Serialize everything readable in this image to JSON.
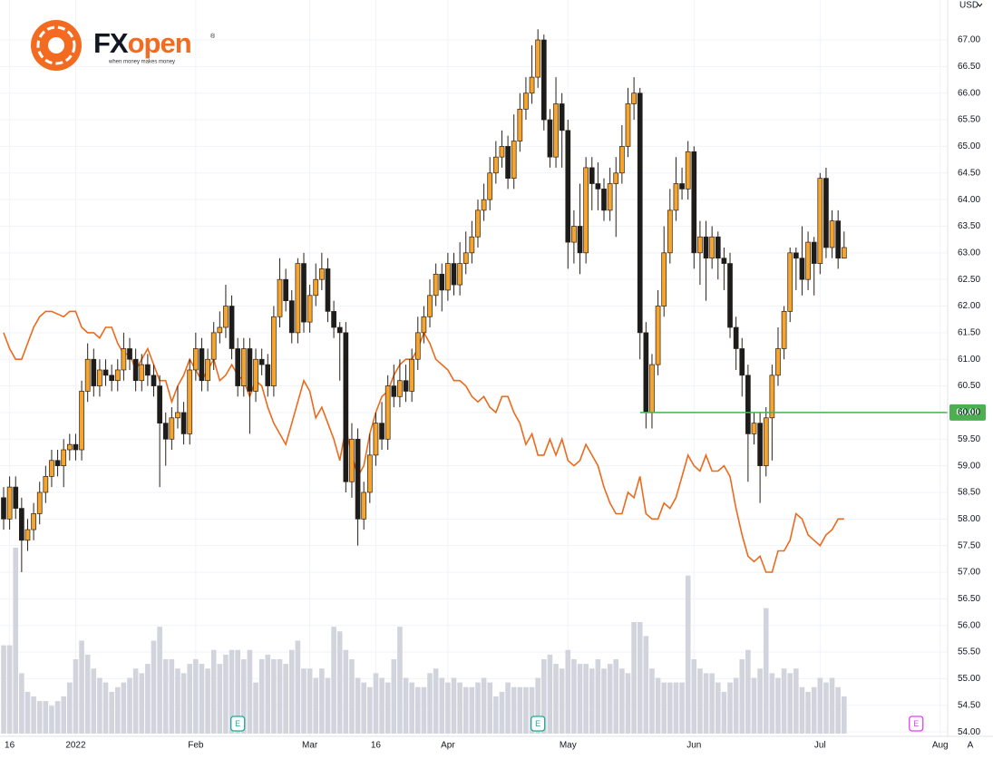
{
  "brand": {
    "name_a": "FX",
    "name_b": "open",
    "mark": "®",
    "tagline": "when money makes money"
  },
  "chart_data": {
    "type": "candlestick",
    "currency": "USD",
    "auto_button": "A",
    "categories": [
      null,
      "16",
      null,
      null,
      null,
      null,
      null,
      null,
      null,
      null,
      null,
      null,
      "2022",
      null,
      null,
      null,
      null,
      null,
      null,
      null,
      null,
      null,
      null,
      null,
      null,
      null,
      null,
      null,
      null,
      null,
      null,
      null,
      "Feb",
      null,
      null,
      null,
      null,
      null,
      null,
      null,
      null,
      null,
      null,
      null,
      null,
      null,
      null,
      null,
      null,
      null,
      null,
      "Mar",
      null,
      null,
      null,
      null,
      null,
      null,
      null,
      null,
      null,
      null,
      "16",
      null,
      null,
      null,
      null,
      null,
      null,
      null,
      null,
      null,
      null,
      null,
      "Apr",
      null,
      null,
      null,
      null,
      null,
      null,
      null,
      null,
      null,
      null,
      null,
      null,
      null,
      null,
      null,
      null,
      null,
      null,
      null,
      "May",
      null,
      null,
      null,
      null,
      null,
      null,
      null,
      null,
      null,
      null,
      null,
      null,
      null,
      null,
      null,
      null,
      null,
      null,
      null,
      null,
      "Jun",
      null,
      null,
      null,
      null,
      null,
      null,
      null,
      null,
      null,
      null,
      null,
      null,
      null,
      null,
      null,
      null,
      null,
      null,
      null,
      null,
      "Jul",
      null,
      null,
      null,
      null,
      null,
      null,
      null,
      null,
      null,
      null,
      null,
      null,
      null,
      null,
      null,
      null,
      null,
      null,
      null,
      "Aug",
      null
    ],
    "open": [
      58.4,
      58.0,
      58.6,
      58.2,
      57.6,
      57.8,
      58.1,
      58.5,
      58.8,
      59.1,
      59.0,
      59.3,
      59.4,
      59.3,
      60.4,
      61.0,
      60.5,
      60.8,
      60.7,
      60.6,
      60.8,
      61.2,
      61.0,
      60.6,
      60.9,
      60.7,
      60.5,
      59.8,
      59.5,
      59.9,
      60.0,
      59.6,
      60.8,
      61.2,
      60.6,
      61.0,
      61.5,
      61.6,
      62.0,
      61.2,
      60.5,
      61.2,
      60.4,
      61.0,
      60.9,
      60.5,
      61.8,
      62.5,
      62.1,
      61.5,
      62.8,
      61.7,
      62.2,
      62.5,
      62.7,
      61.9,
      61.6,
      61.5,
      58.7,
      59.5,
      58.0,
      58.5,
      59.2,
      59.8,
      59.5,
      60.5,
      60.3,
      60.6,
      60.4,
      61.0,
      61.5,
      61.8,
      62.2,
      62.6,
      62.3,
      62.8,
      62.4,
      62.8,
      63.0,
      63.3,
      63.8,
      64.0,
      64.5,
      64.8,
      65.0,
      64.4,
      65.1,
      65.7,
      66.0,
      66.3,
      67.0,
      65.5,
      64.8,
      65.8,
      65.3,
      63.2,
      63.5,
      63.0,
      64.6,
      64.3,
      64.2,
      63.8,
      64.3,
      64.5,
      65.0,
      65.8,
      66.0,
      61.5,
      60.0,
      60.9,
      62.0,
      63.0,
      63.8,
      64.3,
      64.2,
      64.9,
      63.0,
      63.3,
      62.9,
      63.3,
      62.9,
      62.8,
      61.6,
      61.2,
      60.7,
      59.6,
      59.8,
      59.0,
      59.9,
      60.7,
      61.2,
      61.9,
      63.0,
      62.9,
      62.5,
      63.2,
      62.8,
      64.4,
      63.1,
      63.6,
      62.9,
      null,
      null,
      null,
      null,
      null,
      null,
      null,
      null,
      null,
      null,
      null,
      null,
      null,
      null,
      null,
      null,
      null
    ],
    "high": [
      58.6,
      58.8,
      58.8,
      58.4,
      58.0,
      58.3,
      58.7,
      59.0,
      59.3,
      59.3,
      59.5,
      59.6,
      59.6,
      60.6,
      61.3,
      61.2,
      61.0,
      61.0,
      60.9,
      61.0,
      61.5,
      61.4,
      61.2,
      61.1,
      61.1,
      60.9,
      60.7,
      60.0,
      60.1,
      60.5,
      60.2,
      61.0,
      61.5,
      61.4,
      61.2,
      61.7,
      61.9,
      62.4,
      62.2,
      61.4,
      61.4,
      61.4,
      61.2,
      61.2,
      61.1,
      62.0,
      62.9,
      62.7,
      62.3,
      62.9,
      63.0,
      62.4,
      62.8,
      63.0,
      62.9,
      62.1,
      61.7,
      61.7,
      59.8,
      59.7,
      58.7,
      59.6,
      60.0,
      60.2,
      60.7,
      60.9,
      61.0,
      60.9,
      61.2,
      61.8,
      62.0,
      62.5,
      62.8,
      62.8,
      63.0,
      63.0,
      63.2,
      63.4,
      63.6,
      64.0,
      64.3,
      64.8,
      65.1,
      65.3,
      65.2,
      65.6,
      66.0,
      66.3,
      66.9,
      67.2,
      67.1,
      65.7,
      66.3,
      66.0,
      65.5,
      63.8,
      64.3,
      64.8,
      64.8,
      64.7,
      64.4,
      64.6,
      64.8,
      65.4,
      66.1,
      66.3,
      66.1,
      61.7,
      61.1,
      62.3,
      63.5,
      64.2,
      64.8,
      64.6,
      65.1,
      65.0,
      63.6,
      63.6,
      63.5,
      63.4,
      63.1,
      63.0,
      61.8,
      61.4,
      60.9,
      60.0,
      60.0,
      60.1,
      60.9,
      61.6,
      62.0,
      63.1,
      63.1,
      63.5,
      63.4,
      63.3,
      64.5,
      64.6,
      63.8,
      63.8,
      63.4,
      null,
      null,
      null,
      null,
      null,
      null,
      null,
      null,
      null,
      null,
      null,
      null,
      null,
      null,
      null,
      null,
      null
    ],
    "low": [
      57.8,
      57.8,
      58.0,
      57.0,
      57.4,
      57.6,
      57.9,
      58.3,
      58.6,
      58.8,
      58.6,
      59.1,
      59.1,
      59.1,
      60.2,
      60.3,
      60.3,
      60.5,
      60.4,
      60.4,
      60.6,
      60.8,
      60.4,
      60.4,
      60.5,
      60.3,
      58.6,
      59.0,
      59.3,
      59.7,
      59.4,
      59.4,
      60.6,
      60.4,
      60.4,
      60.8,
      61.3,
      61.4,
      61.0,
      60.3,
      60.3,
      59.6,
      60.2,
      60.7,
      60.3,
      60.3,
      61.6,
      61.9,
      61.3,
      61.3,
      61.5,
      61.5,
      62.0,
      62.3,
      61.7,
      61.4,
      60.6,
      58.5,
      58.4,
      57.5,
      57.8,
      58.3,
      59.0,
      59.3,
      59.3,
      60.1,
      60.1,
      60.2,
      60.2,
      60.8,
      61.3,
      61.6,
      62.0,
      61.9,
      62.1,
      62.2,
      62.2,
      62.6,
      62.8,
      63.1,
      63.6,
      63.8,
      64.3,
      64.6,
      64.2,
      64.2,
      64.9,
      65.5,
      65.8,
      66.1,
      65.3,
      64.6,
      64.6,
      64.6,
      62.7,
      62.8,
      62.6,
      62.8,
      63.8,
      63.8,
      63.6,
      63.6,
      63.3,
      64.3,
      64.8,
      65.5,
      61.0,
      59.7,
      59.7,
      60.7,
      61.8,
      62.8,
      63.6,
      64.0,
      64.0,
      62.7,
      62.4,
      62.1,
      62.7,
      62.5,
      62.3,
      61.4,
      60.8,
      60.3,
      58.7,
      59.4,
      58.3,
      58.8,
      59.1,
      60.5,
      61.0,
      61.7,
      62.3,
      62.2,
      62.3,
      62.2,
      62.6,
      62.9,
      62.9,
      62.7,
      62.9,
      null,
      null,
      null,
      null,
      null,
      null,
      null,
      null,
      null,
      null,
      null,
      null,
      null,
      null,
      null,
      null,
      null
    ],
    "close": [
      58.0,
      58.6,
      58.2,
      57.6,
      57.8,
      58.1,
      58.5,
      58.8,
      59.1,
      59.0,
      59.3,
      59.4,
      59.3,
      60.4,
      61.0,
      60.5,
      60.8,
      60.7,
      60.6,
      60.8,
      61.2,
      61.0,
      60.6,
      60.9,
      60.7,
      60.5,
      59.8,
      59.5,
      59.9,
      60.0,
      59.6,
      60.8,
      61.2,
      60.6,
      61.0,
      61.5,
      61.6,
      62.0,
      61.2,
      60.5,
      61.2,
      60.4,
      61.0,
      60.9,
      60.5,
      61.8,
      62.5,
      62.1,
      61.5,
      62.8,
      61.7,
      62.2,
      62.5,
      62.7,
      61.9,
      61.6,
      61.5,
      58.7,
      59.5,
      58.0,
      58.5,
      59.2,
      59.8,
      59.5,
      60.5,
      60.3,
      60.6,
      60.4,
      61.0,
      61.5,
      61.8,
      62.2,
      62.6,
      62.3,
      62.8,
      62.4,
      62.8,
      63.0,
      63.3,
      63.8,
      64.0,
      64.5,
      64.8,
      65.0,
      64.4,
      65.1,
      65.7,
      66.0,
      66.3,
      67.0,
      65.5,
      64.8,
      65.8,
      65.3,
      63.2,
      63.5,
      63.0,
      64.6,
      64.3,
      64.2,
      63.8,
      64.3,
      64.5,
      65.0,
      65.8,
      66.0,
      61.5,
      60.0,
      60.9,
      62.0,
      63.0,
      63.8,
      64.3,
      64.2,
      64.9,
      63.0,
      63.3,
      62.9,
      63.3,
      62.9,
      62.8,
      61.6,
      61.2,
      60.7,
      59.6,
      59.8,
      59.0,
      59.9,
      60.7,
      61.2,
      61.9,
      63.0,
      62.9,
      62.5,
      63.2,
      62.8,
      64.4,
      63.1,
      63.6,
      62.9,
      63.1,
      null,
      null,
      null,
      null,
      null,
      null,
      null,
      null,
      null,
      null,
      null,
      null,
      null,
      null,
      null,
      null,
      null
    ],
    "volume": [
      95,
      95,
      200,
      65,
      45,
      40,
      35,
      35,
      30,
      35,
      40,
      55,
      80,
      100,
      85,
      70,
      60,
      55,
      45,
      50,
      55,
      60,
      70,
      65,
      75,
      100,
      115,
      80,
      80,
      70,
      65,
      75,
      80,
      75,
      70,
      90,
      75,
      85,
      90,
      90,
      80,
      90,
      55,
      80,
      85,
      80,
      80,
      75,
      90,
      100,
      70,
      70,
      60,
      70,
      60,
      115,
      110,
      90,
      80,
      60,
      55,
      50,
      65,
      60,
      55,
      80,
      115,
      60,
      55,
      50,
      50,
      65,
      70,
      60,
      55,
      60,
      55,
      50,
      50,
      55,
      60,
      55,
      40,
      45,
      55,
      50,
      50,
      50,
      50,
      60,
      80,
      85,
      75,
      70,
      90,
      80,
      75,
      75,
      70,
      80,
      70,
      75,
      80,
      70,
      65,
      120,
      120,
      105,
      70,
      60,
      55,
      55,
      55,
      55,
      170,
      80,
      70,
      65,
      65,
      55,
      45,
      55,
      60,
      80,
      90,
      60,
      70,
      135,
      65,
      60,
      70,
      65,
      70,
      50,
      45,
      50,
      60,
      55,
      60,
      50,
      40,
      null,
      null,
      null,
      null,
      null,
      null,
      null,
      null,
      null,
      null,
      null,
      null,
      null,
      null,
      null,
      null,
      null
    ],
    "up_color": "#f6a42c",
    "down_color": "#1c1c1c",
    "outline_color": "#2a2118",
    "volume_color": "#d1d4dc",
    "line": {
      "color": "#ec6a1c",
      "values": [
        61.5,
        61.2,
        61.0,
        61.0,
        61.3,
        61.6,
        61.8,
        61.9,
        61.9,
        61.85,
        61.8,
        61.9,
        61.9,
        61.6,
        61.5,
        61.5,
        61.4,
        61.6,
        61.6,
        61.3,
        61.1,
        61.1,
        60.8,
        61.0,
        61.2,
        60.9,
        60.6,
        60.6,
        60.2,
        60.5,
        60.7,
        61.0,
        60.8,
        60.6,
        60.8,
        61.0,
        60.6,
        60.7,
        60.9,
        60.7,
        60.6,
        60.3,
        60.6,
        60.5,
        60.1,
        59.8,
        59.6,
        59.4,
        59.8,
        60.2,
        60.6,
        60.4,
        59.9,
        60.1,
        59.8,
        59.5,
        59.1,
        59.7,
        59.2,
        58.8,
        59.0,
        59.6,
        60.0,
        60.3,
        60.4,
        60.7,
        60.9,
        61.0,
        61.0,
        61.2,
        61.5,
        61.3,
        61.0,
        60.9,
        60.8,
        60.6,
        60.6,
        60.5,
        60.3,
        60.2,
        60.3,
        60.1,
        60.0,
        60.3,
        60.3,
        60.0,
        59.8,
        59.4,
        59.6,
        59.2,
        59.2,
        59.5,
        59.2,
        59.5,
        59.1,
        59.0,
        59.1,
        59.4,
        59.2,
        59.0,
        58.6,
        58.3,
        58.1,
        58.1,
        58.5,
        58.4,
        58.8,
        58.1,
        58.0,
        58.0,
        58.3,
        58.2,
        58.4,
        58.8,
        59.2,
        59.0,
        58.9,
        59.2,
        58.9,
        58.9,
        59.0,
        58.8,
        58.2,
        57.7,
        57.3,
        57.2,
        57.3,
        57.0,
        57.0,
        57.4,
        57.4,
        57.6,
        58.1,
        58.0,
        57.7,
        57.6,
        57.5,
        57.7,
        57.8,
        58.0,
        58.0,
        null,
        null,
        null,
        null,
        null,
        null,
        null,
        null,
        null,
        null,
        null,
        null,
        null,
        null,
        null,
        null,
        null
      ]
    },
    "price_line": {
      "value": 60,
      "label": "60.00",
      "color": "#4caf50",
      "start": 106
    },
    "events": [
      {
        "at": 39,
        "label": "E",
        "color": "#26a69a"
      },
      {
        "at": 89,
        "label": "E",
        "color": "#26a69a"
      },
      {
        "at": 152,
        "label": "E",
        "color": "#e040fb"
      }
    ],
    "ylim": [
      53.9,
      67.75
    ],
    "yticks": [
      {
        "value": 54,
        "label": "54.00"
      },
      {
        "value": 54.5,
        "label": "54.50"
      },
      {
        "value": 55,
        "label": "55.00"
      },
      {
        "value": 55.5,
        "label": "55.50"
      },
      {
        "value": 56,
        "label": "56.00"
      },
      {
        "value": 56.5,
        "label": "56.50"
      },
      {
        "value": 57,
        "label": "57.00"
      },
      {
        "value": 57.5,
        "label": "57.50"
      },
      {
        "value": 58,
        "label": "58.00"
      },
      {
        "value": 58.5,
        "label": "58.50"
      },
      {
        "value": 59,
        "label": "59.00"
      },
      {
        "value": 59.5,
        "label": "59.50"
      },
      {
        "value": 60,
        "label": "60.00"
      },
      {
        "value": 60.5,
        "label": "60.50"
      },
      {
        "value": 61,
        "label": "61.00"
      },
      {
        "value": 61.5,
        "label": "61.50"
      },
      {
        "value": 62,
        "label": "62.00"
      },
      {
        "value": 62.5,
        "label": "62.50"
      },
      {
        "value": 63,
        "label": "63.00"
      },
      {
        "value": 63.5,
        "label": "63.50"
      },
      {
        "value": 64,
        "label": "64.00"
      },
      {
        "value": 64.5,
        "label": "64.50"
      },
      {
        "value": 65,
        "label": "65.00"
      },
      {
        "value": 65.5,
        "label": "65.50"
      },
      {
        "value": 66,
        "label": "66.00"
      },
      {
        "value": 66.5,
        "label": "66.50"
      },
      {
        "value": 67,
        "label": "67.00"
      }
    ],
    "grid": true
  }
}
